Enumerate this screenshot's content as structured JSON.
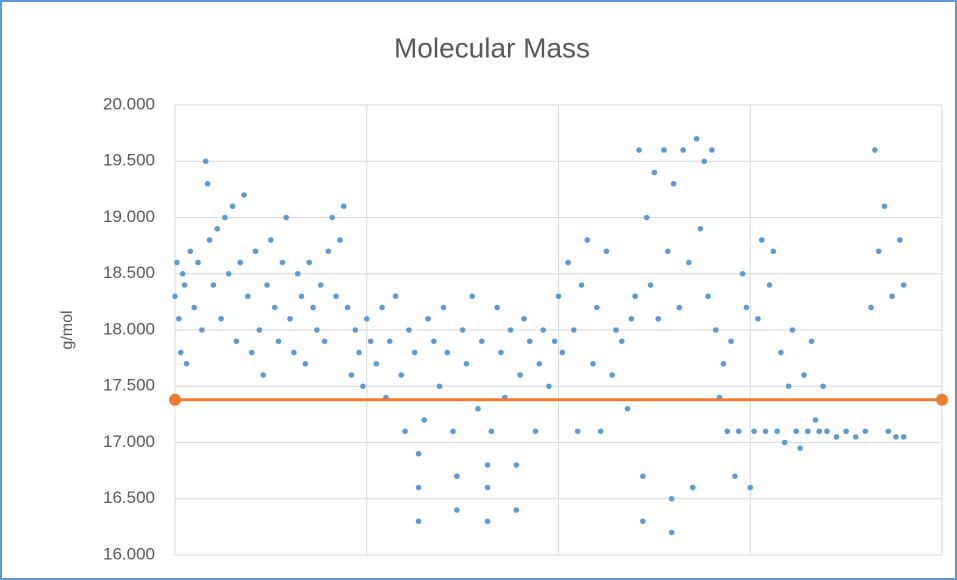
{
  "chart_data": {
    "type": "scatter",
    "title": "Molecular Mass",
    "y_label": "g/mol",
    "xlim": [
      0,
      4
    ],
    "xticks": [
      0,
      1,
      2,
      3,
      4
    ],
    "ylim": [
      16,
      20
    ],
    "yticks": [
      {
        "value": 16,
        "label": "16.000"
      },
      {
        "value": 16.5,
        "label": "16.500"
      },
      {
        "value": 17,
        "label": "17.000"
      },
      {
        "value": 17.5,
        "label": "17.500"
      },
      {
        "value": 18,
        "label": "18.000"
      },
      {
        "value": 18.5,
        "label": "18.500"
      },
      {
        "value": 19,
        "label": "19.000"
      },
      {
        "value": 19.5,
        "label": "19.500"
      },
      {
        "value": 20,
        "label": "20.000"
      }
    ],
    "grid": true,
    "series": [
      {
        "color": "#5b9bd5",
        "mode": "markers",
        "x": [
          0,
          0.01,
          0.02,
          0.03,
          0.04,
          0.05,
          0.06,
          0.08,
          0.1,
          0.12,
          0.14,
          0.16,
          0.17,
          0.18,
          0.2,
          0.22,
          0.24,
          0.26,
          0.28,
          0.3,
          0.32,
          0.34,
          0.36,
          0.38,
          0.4,
          0.42,
          0.44,
          0.46,
          0.48,
          0.5,
          0.52,
          0.54,
          0.56,
          0.58,
          0.6,
          0.62,
          0.64,
          0.66,
          0.68,
          0.7,
          0.72,
          0.74,
          0.76,
          0.78,
          0.8,
          0.82,
          0.84,
          0.86,
          0.88,
          0.9,
          0.92,
          0.94,
          0.96,
          0.98,
          1,
          1.02,
          1.05,
          1.08,
          1.1,
          1.12,
          1.15,
          1.18,
          1.2,
          1.22,
          1.25,
          1.27,
          1.27,
          1.27,
          1.3,
          1.32,
          1.35,
          1.38,
          1.4,
          1.42,
          1.45,
          1.47,
          1.47,
          1.5,
          1.52,
          1.55,
          1.58,
          1.6,
          1.63,
          1.63,
          1.63,
          1.65,
          1.68,
          1.7,
          1.72,
          1.75,
          1.78,
          1.78,
          1.8,
          1.82,
          1.85,
          1.88,
          1.9,
          1.92,
          1.95,
          1.98,
          2,
          2.02,
          2.05,
          2.08,
          2.1,
          2.12,
          2.15,
          2.18,
          2.2,
          2.22,
          2.25,
          2.28,
          2.3,
          2.33,
          2.36,
          2.38,
          2.4,
          2.42,
          2.44,
          2.44,
          2.46,
          2.48,
          2.5,
          2.52,
          2.55,
          2.57,
          2.59,
          2.59,
          2.6,
          2.63,
          2.65,
          2.68,
          2.7,
          2.72,
          2.74,
          2.76,
          2.78,
          2.8,
          2.82,
          2.84,
          2.86,
          2.88,
          2.9,
          2.92,
          2.94,
          2.96,
          2.98,
          3,
          3.02,
          3.04,
          3.06,
          3.08,
          3.1,
          3.12,
          3.14,
          3.16,
          3.18,
          3.2,
          3.22,
          3.24,
          3.26,
          3.28,
          3.3,
          3.32,
          3.34,
          3.36,
          3.38,
          3.4,
          3.45,
          3.5,
          3.55,
          3.6,
          3.63,
          3.65,
          3.67,
          3.7,
          3.72,
          3.74,
          3.76,
          3.78,
          3.8,
          3.8
        ],
        "values": [
          18.3,
          18.6,
          18.1,
          17.8,
          18.5,
          18.4,
          17.7,
          18.7,
          18.2,
          18.6,
          18,
          19.5,
          19.3,
          18.8,
          18.4,
          18.9,
          18.1,
          19,
          18.5,
          19.1,
          17.9,
          18.6,
          19.2,
          18.3,
          17.8,
          18.7,
          18,
          17.6,
          18.4,
          18.8,
          18.2,
          17.9,
          18.6,
          19,
          18.1,
          17.8,
          18.5,
          18.3,
          17.7,
          18.6,
          18.2,
          18,
          18.4,
          17.9,
          18.7,
          19,
          18.3,
          18.8,
          19.1,
          18.2,
          17.6,
          18,
          17.8,
          17.5,
          18.1,
          17.9,
          17.7,
          18.2,
          17.4,
          17.9,
          18.3,
          17.6,
          17.1,
          18,
          17.8,
          16.3,
          16.6,
          16.9,
          17.2,
          18.1,
          17.9,
          17.5,
          18.2,
          17.8,
          17.1,
          16.4,
          16.7,
          18,
          17.7,
          18.3,
          17.3,
          17.9,
          16.3,
          16.6,
          16.8,
          17.1,
          18.2,
          17.8,
          17.4,
          18,
          16.4,
          16.8,
          17.6,
          18.1,
          17.9,
          17.1,
          17.7,
          18,
          17.5,
          17.9,
          18.3,
          17.8,
          18.6,
          18,
          17.1,
          18.4,
          18.8,
          17.7,
          18.2,
          17.1,
          18.7,
          17.6,
          18,
          17.9,
          17.3,
          18.1,
          18.3,
          19.6,
          16.3,
          16.7,
          19,
          18.4,
          19.4,
          18.1,
          19.6,
          18.7,
          16.2,
          16.5,
          19.3,
          18.2,
          19.6,
          18.6,
          16.6,
          19.7,
          18.9,
          19.5,
          18.3,
          19.6,
          18,
          17.4,
          17.7,
          17.1,
          17.9,
          16.7,
          17.1,
          18.5,
          18.2,
          16.6,
          17.1,
          18.1,
          18.8,
          17.1,
          18.4,
          18.7,
          17.1,
          17.8,
          17,
          17.5,
          18,
          17.1,
          16.95,
          17.6,
          17.1,
          17.9,
          17.2,
          17.1,
          17.5,
          17.1,
          17.05,
          17.1,
          17.05,
          17.1,
          18.2,
          19.6,
          18.7,
          19.1,
          17.1,
          18.3,
          17.05,
          18.8,
          18.4,
          17.05
        ]
      },
      {
        "color": "#ed7d31",
        "mode": "lines+markers",
        "x": [
          0,
          4
        ],
        "values": [
          17.38,
          17.38
        ]
      }
    ]
  }
}
